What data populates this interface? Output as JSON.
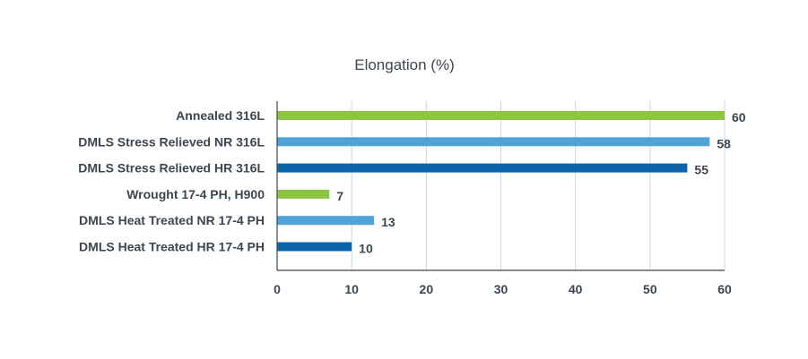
{
  "chart_data": {
    "type": "bar",
    "orientation": "horizontal",
    "title": "Elongation (%)",
    "xlabel": "",
    "ylabel": "",
    "categories": [
      "Annealed 316L",
      "DMLS Stress Relieved NR 316L",
      "DMLS Stress Relieved HR 316L",
      "Wrought 17-4 PH, H900",
      "DMLS Heat Treated NR 17-4 PH",
      "DMLS Heat Treated HR 17-4 PH"
    ],
    "values": [
      60,
      58,
      55,
      7,
      13,
      10
    ],
    "data_labels": [
      "60",
      "58",
      "55",
      "7",
      "13",
      "10"
    ],
    "bar_colors": [
      "#8cc63f",
      "#4fa3d6",
      "#0b63a8",
      "#8cc63f",
      "#4fa3d6",
      "#0b63a8"
    ],
    "xlim": [
      0,
      60
    ],
    "xticks": [
      0,
      10,
      20,
      30,
      40,
      50,
      60
    ],
    "xtick_labels": [
      "0",
      "10",
      "20",
      "30",
      "40",
      "50",
      "60"
    ],
    "grid": "vertical",
    "legend": "none"
  },
  "colors": {
    "grid": "#cfd4d9",
    "axis": "#3d4650",
    "text": "#3d4650"
  }
}
